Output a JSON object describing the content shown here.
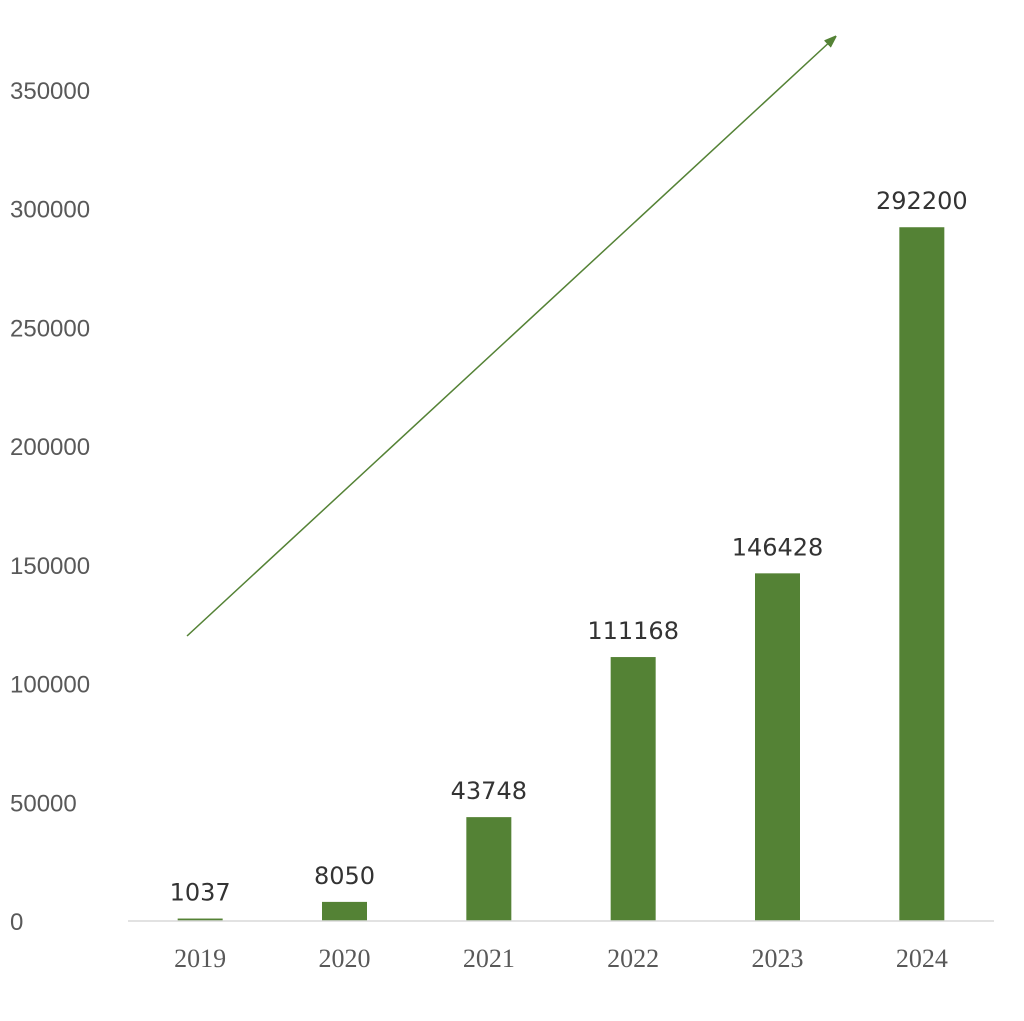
{
  "chart_data": {
    "type": "bar",
    "categories": [
      "2019",
      "2020",
      "2021",
      "2022",
      "2023",
      "2024"
    ],
    "values": [
      1037,
      8050,
      43748,
      111168,
      146428,
      292200
    ],
    "data_labels": [
      "1037",
      "8050",
      "43748",
      "111168",
      "146428",
      "292200"
    ],
    "y_ticks": [
      "0",
      "50000",
      "100000",
      "150000",
      "200000",
      "250000",
      "300000",
      "350000"
    ],
    "ylim": [
      0,
      350000
    ],
    "title": "",
    "xlabel": "",
    "ylabel": "",
    "grid": false,
    "legend": "none",
    "trend_arrow": true,
    "colors": {
      "bar": "#548235",
      "arrow": "#548235",
      "axis": "#d9d9d9"
    }
  }
}
